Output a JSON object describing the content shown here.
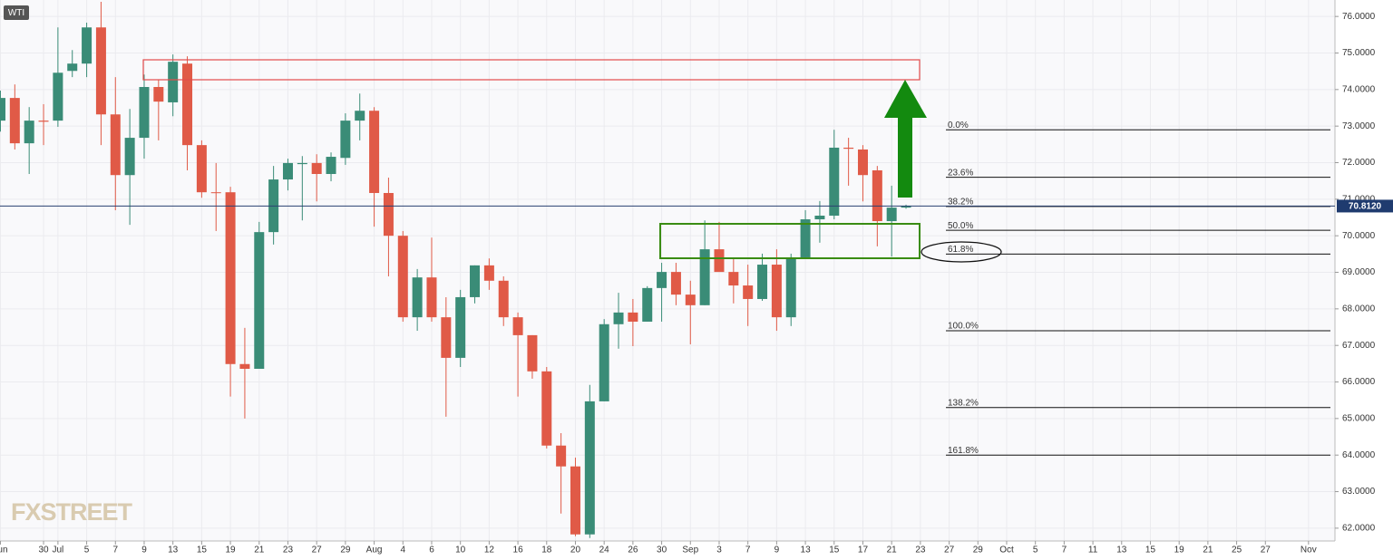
{
  "chart_data": {
    "type": "candlestick",
    "symbol": "WTI",
    "watermark": "FXSTREET",
    "up_color": "#3a8c77",
    "down_color": "#e05a47",
    "grid": true,
    "xlim": [
      -0.03,
      92.84
    ],
    "ylim": [
      61.65,
      76.45
    ],
    "yticks": [
      {
        "value": 62,
        "label": "62.0000"
      },
      {
        "value": 63,
        "label": "63.0000"
      },
      {
        "value": 64,
        "label": "64.0000"
      },
      {
        "value": 65,
        "label": "65.0000"
      },
      {
        "value": 66,
        "label": "66.0000"
      },
      {
        "value": 67,
        "label": "67.0000"
      },
      {
        "value": 68,
        "label": "68.0000"
      },
      {
        "value": 69,
        "label": "69.0000"
      },
      {
        "value": 70,
        "label": "70.0000"
      },
      {
        "value": 71,
        "label": "71.0000"
      },
      {
        "value": 72,
        "label": "72.0000"
      },
      {
        "value": 73,
        "label": "73.0000"
      },
      {
        "value": 74,
        "label": "74.0000"
      },
      {
        "value": 75,
        "label": "75.0000"
      },
      {
        "value": 76,
        "label": "76.0000"
      }
    ],
    "xticks": [
      {
        "value": 0,
        "label": "Jun"
      },
      {
        "value": 3,
        "label": "30"
      },
      {
        "value": 4,
        "label": "Jul"
      },
      {
        "value": 6,
        "label": "5"
      },
      {
        "value": 8,
        "label": "7"
      },
      {
        "value": 10,
        "label": "9"
      },
      {
        "value": 12,
        "label": "13"
      },
      {
        "value": 14,
        "label": "15"
      },
      {
        "value": 16,
        "label": "19"
      },
      {
        "value": 18,
        "label": "21"
      },
      {
        "value": 20,
        "label": "23"
      },
      {
        "value": 22,
        "label": "27"
      },
      {
        "value": 24,
        "label": "29"
      },
      {
        "value": 26,
        "label": "Aug"
      },
      {
        "value": 28,
        "label": "4"
      },
      {
        "value": 30,
        "label": "6"
      },
      {
        "value": 32,
        "label": "10"
      },
      {
        "value": 34,
        "label": "12"
      },
      {
        "value": 36,
        "label": "16"
      },
      {
        "value": 38,
        "label": "18"
      },
      {
        "value": 40,
        "label": "20"
      },
      {
        "value": 42,
        "label": "24"
      },
      {
        "value": 44,
        "label": "26"
      },
      {
        "value": 46,
        "label": "30"
      },
      {
        "value": 48,
        "label": "Sep"
      },
      {
        "value": 50,
        "label": "3"
      },
      {
        "value": 52,
        "label": "7"
      },
      {
        "value": 54,
        "label": "9"
      },
      {
        "value": 56,
        "label": "13"
      },
      {
        "value": 58,
        "label": "15"
      },
      {
        "value": 60,
        "label": "17"
      },
      {
        "value": 62,
        "label": "21"
      },
      {
        "value": 64,
        "label": "23"
      },
      {
        "value": 66,
        "label": "27"
      },
      {
        "value": 68,
        "label": "29"
      },
      {
        "value": 70,
        "label": "Oct"
      },
      {
        "value": 72,
        "label": "5"
      },
      {
        "value": 74,
        "label": "7"
      },
      {
        "value": 76,
        "label": "11"
      },
      {
        "value": 78,
        "label": "13"
      },
      {
        "value": 80,
        "label": "15"
      },
      {
        "value": 82,
        "label": "19"
      },
      {
        "value": 84,
        "label": "21"
      },
      {
        "value": 86,
        "label": "25"
      },
      {
        "value": 88,
        "label": "27"
      },
      {
        "value": 91,
        "label": "Nov"
      }
    ],
    "open": [
      73.15,
      73.77,
      72.53,
      73.15,
      73.15,
      74.51,
      74.71,
      75.7,
      73.32,
      71.66,
      72.68,
      74.07,
      73.65,
      74.71,
      72.48,
      71.19,
      71.19,
      66.49,
      66.36,
      70.1,
      71.54,
      71.96,
      71.99,
      71.69,
      72.13,
      73.15,
      73.42,
      71.17,
      70.0,
      67.77,
      68.86,
      67.77,
      66.66,
      68.32,
      69.19,
      68.77,
      67.77,
      67.28,
      66.29,
      64.26,
      63.69,
      61.83,
      65.47,
      67.58,
      67.9,
      67.65,
      68.57,
      69.01,
      68.39,
      68.1,
      69.63,
      69.01,
      68.64,
      68.27,
      69.21,
      67.77,
      69.41,
      70.45,
      70.55,
      72.41,
      72.36,
      71.79,
      70.4,
      70.77
    ],
    "high": [
      73.97,
      74.14,
      73.52,
      73.6,
      75.7,
      75.08,
      75.83,
      76.4,
      74.34,
      73.47,
      74.41,
      74.27,
      74.96,
      74.91,
      72.61,
      71.99,
      71.34,
      67.48,
      70.38,
      71.91,
      72.11,
      72.18,
      72.23,
      72.28,
      73.35,
      73.89,
      73.52,
      71.59,
      70.13,
      69.09,
      69.95,
      68.32,
      68.52,
      69.19,
      69.38,
      68.89,
      67.9,
      67.28,
      66.41,
      64.6,
      63.93,
      65.92,
      67.72,
      68.44,
      68.27,
      68.62,
      69.26,
      69.26,
      68.77,
      70.42,
      70.38,
      69.38,
      69.21,
      69.51,
      69.63,
      69.51,
      70.7,
      70.95,
      72.9,
      72.68,
      72.48,
      71.91,
      71.37,
      70.85
    ],
    "low": [
      72.85,
      72.36,
      71.69,
      72.48,
      72.98,
      74.34,
      74.34,
      72.48,
      70.7,
      70.3,
      72.11,
      72.61,
      73.27,
      71.79,
      71.04,
      70.13,
      65.6,
      65.0,
      66.36,
      69.76,
      71.24,
      70.42,
      70.94,
      71.49,
      71.94,
      72.61,
      70.25,
      68.89,
      67.65,
      67.4,
      67.65,
      65.05,
      66.41,
      68.15,
      68.52,
      67.53,
      65.6,
      66.09,
      64.18,
      62.4,
      61.78,
      61.73,
      65.47,
      66.91,
      66.98,
      67.65,
      67.65,
      68.1,
      67.03,
      68.1,
      69.01,
      68.15,
      67.53,
      68.22,
      67.4,
      67.53,
      69.41,
      69.81,
      70.45,
      71.37,
      70.94,
      69.71,
      69.43,
      70.74
    ],
    "close": [
      73.77,
      72.53,
      73.15,
      73.12,
      74.46,
      74.71,
      75.7,
      73.32,
      71.66,
      72.68,
      74.07,
      73.67,
      74.76,
      72.48,
      71.19,
      71.17,
      66.49,
      66.36,
      70.1,
      71.54,
      71.99,
      71.99,
      71.69,
      72.16,
      73.15,
      73.42,
      71.17,
      70.0,
      67.77,
      68.86,
      67.77,
      66.66,
      68.32,
      69.19,
      68.77,
      67.77,
      67.28,
      66.29,
      64.26,
      63.69,
      61.83,
      65.47,
      67.58,
      67.9,
      67.65,
      68.57,
      69.01,
      68.39,
      68.1,
      69.63,
      69.01,
      68.64,
      68.27,
      69.21,
      67.77,
      69.41,
      70.45,
      70.55,
      72.41,
      72.38,
      71.66,
      70.4,
      70.77,
      70.81
    ],
    "last_price": {
      "value": 70.812,
      "label": "70.8120"
    },
    "fib_levels": [
      {
        "label": "0.0%",
        "value": 72.9
      },
      {
        "label": "23.6%",
        "value": 71.6
      },
      {
        "label": "38.2%",
        "value": 70.8
      },
      {
        "label": "50.0%",
        "value": 70.15
      },
      {
        "label": "61.8%",
        "value": 69.5
      },
      {
        "label": "100.0%",
        "value": 67.4
      },
      {
        "label": "138.2%",
        "value": 65.3
      },
      {
        "label": "161.8%",
        "value": 64.0
      }
    ]
  }
}
